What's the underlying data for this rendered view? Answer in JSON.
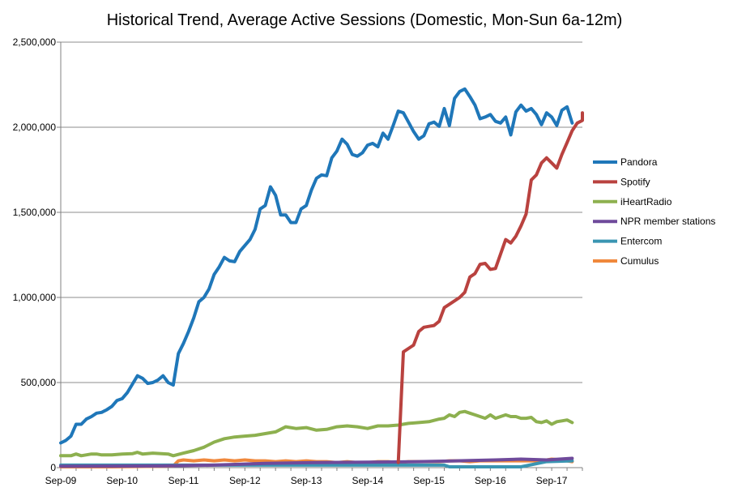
{
  "chart_data": {
    "type": "line",
    "title": "Historical Trend, Average Active Sessions (Domestic, Mon-Sun 6a-12m)",
    "xlabel": "",
    "ylabel": "",
    "x_ticks": [
      "Sep-09",
      "Sep-10",
      "Sep-11",
      "Sep-12",
      "Sep-13",
      "Sep-14",
      "Sep-15",
      "Sep-16",
      "Sep-17"
    ],
    "y_ticks": [
      "0",
      "500,000",
      "1,000,000",
      "1,500,000",
      "2,000,000",
      "2,500,000"
    ],
    "ylim": [
      0,
      2500000
    ],
    "xlim": [
      0,
      102
    ],
    "grid": "horizontal",
    "legend_position": "right",
    "series": [
      {
        "name": "Pandora",
        "color": "#1f77b9",
        "points": [
          [
            0,
            145000
          ],
          [
            1,
            160000
          ],
          [
            2,
            185000
          ],
          [
            3,
            255000
          ],
          [
            4,
            255000
          ],
          [
            5,
            285000
          ],
          [
            6,
            300000
          ],
          [
            7,
            320000
          ],
          [
            8,
            325000
          ],
          [
            9,
            340000
          ],
          [
            10,
            360000
          ],
          [
            11,
            395000
          ],
          [
            12,
            405000
          ],
          [
            13,
            440000
          ],
          [
            14,
            490000
          ],
          [
            15,
            540000
          ],
          [
            16,
            525000
          ],
          [
            17,
            495000
          ],
          [
            18,
            500000
          ],
          [
            19,
            515000
          ],
          [
            20,
            540000
          ],
          [
            21,
            500000
          ],
          [
            22,
            485000
          ],
          [
            23,
            670000
          ],
          [
            24,
            730000
          ],
          [
            25,
            800000
          ],
          [
            26,
            880000
          ],
          [
            27,
            975000
          ],
          [
            28,
            1000000
          ],
          [
            29,
            1050000
          ],
          [
            30,
            1135000
          ],
          [
            31,
            1180000
          ],
          [
            32,
            1235000
          ],
          [
            33,
            1215000
          ],
          [
            34,
            1210000
          ],
          [
            35,
            1270000
          ],
          [
            36,
            1305000
          ],
          [
            37,
            1340000
          ],
          [
            38,
            1400000
          ],
          [
            39,
            1520000
          ],
          [
            40,
            1540000
          ],
          [
            41,
            1650000
          ],
          [
            42,
            1600000
          ],
          [
            43,
            1485000
          ],
          [
            44,
            1485000
          ],
          [
            45,
            1440000
          ],
          [
            46,
            1440000
          ],
          [
            47,
            1520000
          ],
          [
            48,
            1540000
          ],
          [
            49,
            1630000
          ],
          [
            50,
            1700000
          ],
          [
            51,
            1720000
          ],
          [
            52,
            1715000
          ],
          [
            53,
            1820000
          ],
          [
            54,
            1860000
          ],
          [
            55,
            1930000
          ],
          [
            56,
            1900000
          ],
          [
            57,
            1840000
          ],
          [
            58,
            1830000
          ],
          [
            59,
            1850000
          ],
          [
            60,
            1895000
          ],
          [
            61,
            1905000
          ],
          [
            62,
            1885000
          ],
          [
            63,
            1965000
          ],
          [
            64,
            1930000
          ],
          [
            65,
            2010000
          ],
          [
            66,
            2095000
          ],
          [
            67,
            2085000
          ],
          [
            68,
            2030000
          ],
          [
            69,
            1975000
          ],
          [
            70,
            1930000
          ],
          [
            71,
            1950000
          ],
          [
            72,
            2020000
          ],
          [
            73,
            2030000
          ],
          [
            74,
            2005000
          ],
          [
            75,
            2110000
          ],
          [
            76,
            2010000
          ],
          [
            77,
            2170000
          ],
          [
            78,
            2210000
          ],
          [
            79,
            2225000
          ],
          [
            80,
            2180000
          ],
          [
            81,
            2130000
          ],
          [
            82,
            2050000
          ],
          [
            83,
            2060000
          ],
          [
            84,
            2075000
          ],
          [
            85,
            2035000
          ],
          [
            86,
            2025000
          ],
          [
            87,
            2060000
          ],
          [
            88,
            1955000
          ],
          [
            89,
            2090000
          ],
          [
            90,
            2130000
          ],
          [
            91,
            2095000
          ],
          [
            92,
            2110000
          ],
          [
            93,
            2075000
          ],
          [
            94,
            2015000
          ],
          [
            95,
            2085000
          ],
          [
            96,
            2060000
          ],
          [
            97,
            2010000
          ],
          [
            98,
            2100000
          ],
          [
            99,
            2120000
          ],
          [
            100,
            2025000
          ]
        ]
      },
      {
        "name": "Spotify",
        "color": "#b9423f",
        "points": [
          [
            66,
            30000
          ],
          [
            67,
            680000
          ],
          [
            68,
            700000
          ],
          [
            69,
            720000
          ],
          [
            70,
            800000
          ],
          [
            71,
            825000
          ],
          [
            72,
            830000
          ],
          [
            73,
            835000
          ],
          [
            74,
            860000
          ],
          [
            75,
            940000
          ],
          [
            76,
            960000
          ],
          [
            77,
            980000
          ],
          [
            78,
            1000000
          ],
          [
            79,
            1030000
          ],
          [
            80,
            1120000
          ],
          [
            81,
            1140000
          ],
          [
            82,
            1195000
          ],
          [
            83,
            1200000
          ],
          [
            84,
            1165000
          ],
          [
            85,
            1170000
          ],
          [
            86,
            1255000
          ],
          [
            87,
            1340000
          ],
          [
            88,
            1320000
          ],
          [
            89,
            1360000
          ],
          [
            90,
            1420000
          ],
          [
            91,
            1490000
          ],
          [
            92,
            1690000
          ],
          [
            93,
            1720000
          ],
          [
            94,
            1790000
          ],
          [
            95,
            1820000
          ],
          [
            96,
            1790000
          ],
          [
            97,
            1760000
          ],
          [
            98,
            1840000
          ],
          [
            99,
            1910000
          ],
          [
            100,
            1980000
          ],
          [
            101,
            2025000
          ],
          [
            102,
            2040000
          ],
          [
            103,
            2085000
          ]
        ]
      },
      {
        "name": "iHeartRadio",
        "color": "#8db04f",
        "points": [
          [
            0,
            70000
          ],
          [
            2,
            70000
          ],
          [
            3,
            80000
          ],
          [
            4,
            70000
          ],
          [
            6,
            80000
          ],
          [
            7,
            80000
          ],
          [
            8,
            75000
          ],
          [
            10,
            75000
          ],
          [
            12,
            80000
          ],
          [
            14,
            82000
          ],
          [
            15,
            90000
          ],
          [
            16,
            80000
          ],
          [
            18,
            85000
          ],
          [
            21,
            80000
          ],
          [
            22,
            70000
          ],
          [
            24,
            85000
          ],
          [
            26,
            100000
          ],
          [
            28,
            120000
          ],
          [
            30,
            150000
          ],
          [
            32,
            170000
          ],
          [
            34,
            180000
          ],
          [
            36,
            185000
          ],
          [
            38,
            190000
          ],
          [
            40,
            200000
          ],
          [
            42,
            210000
          ],
          [
            44,
            240000
          ],
          [
            46,
            230000
          ],
          [
            48,
            235000
          ],
          [
            50,
            220000
          ],
          [
            52,
            225000
          ],
          [
            54,
            240000
          ],
          [
            56,
            245000
          ],
          [
            58,
            240000
          ],
          [
            60,
            230000
          ],
          [
            62,
            245000
          ],
          [
            64,
            245000
          ],
          [
            66,
            250000
          ],
          [
            68,
            260000
          ],
          [
            70,
            265000
          ],
          [
            72,
            270000
          ],
          [
            74,
            285000
          ],
          [
            75,
            290000
          ],
          [
            76,
            310000
          ],
          [
            77,
            300000
          ],
          [
            78,
            325000
          ],
          [
            79,
            330000
          ],
          [
            80,
            320000
          ],
          [
            81,
            310000
          ],
          [
            82,
            300000
          ],
          [
            83,
            290000
          ],
          [
            84,
            310000
          ],
          [
            85,
            290000
          ],
          [
            86,
            300000
          ],
          [
            87,
            310000
          ],
          [
            88,
            300000
          ],
          [
            89,
            300000
          ],
          [
            90,
            290000
          ],
          [
            91,
            290000
          ],
          [
            92,
            295000
          ],
          [
            93,
            270000
          ],
          [
            94,
            265000
          ],
          [
            95,
            275000
          ],
          [
            96,
            255000
          ],
          [
            97,
            270000
          ],
          [
            98,
            275000
          ],
          [
            99,
            280000
          ],
          [
            100,
            265000
          ]
        ]
      },
      {
        "name": "NPR member stations",
        "color": "#6f4a9b",
        "points": [
          [
            0,
            8000
          ],
          [
            10,
            9000
          ],
          [
            20,
            10000
          ],
          [
            30,
            15000
          ],
          [
            40,
            25000
          ],
          [
            50,
            30000
          ],
          [
            60,
            32000
          ],
          [
            70,
            35000
          ],
          [
            75,
            38000
          ],
          [
            80,
            42000
          ],
          [
            85,
            45000
          ],
          [
            90,
            50000
          ],
          [
            95,
            45000
          ],
          [
            100,
            55000
          ]
        ]
      },
      {
        "name": "Entercom",
        "color": "#3a95b2",
        "points": [
          [
            0,
            15000
          ],
          [
            10,
            15000
          ],
          [
            20,
            15000
          ],
          [
            30,
            15000
          ],
          [
            40,
            15000
          ],
          [
            50,
            15000
          ],
          [
            60,
            15000
          ],
          [
            66,
            15000
          ],
          [
            70,
            15000
          ],
          [
            75,
            15000
          ],
          [
            76,
            5000
          ],
          [
            80,
            5000
          ],
          [
            85,
            5000
          ],
          [
            90,
            5000
          ],
          [
            95,
            35000
          ],
          [
            100,
            40000
          ]
        ]
      },
      {
        "name": "Cumulus",
        "color": "#f0883c",
        "points": [
          [
            0,
            5000
          ],
          [
            10,
            5000
          ],
          [
            20,
            8000
          ],
          [
            22,
            10000
          ],
          [
            23,
            40000
          ],
          [
            24,
            45000
          ],
          [
            26,
            40000
          ],
          [
            28,
            45000
          ],
          [
            30,
            40000
          ],
          [
            32,
            45000
          ],
          [
            34,
            40000
          ],
          [
            36,
            45000
          ],
          [
            38,
            40000
          ],
          [
            40,
            40000
          ],
          [
            42,
            35000
          ],
          [
            44,
            40000
          ],
          [
            46,
            35000
          ],
          [
            48,
            40000
          ],
          [
            50,
            35000
          ],
          [
            52,
            35000
          ],
          [
            54,
            30000
          ],
          [
            56,
            35000
          ],
          [
            58,
            30000
          ],
          [
            60,
            30000
          ],
          [
            62,
            35000
          ],
          [
            64,
            35000
          ],
          [
            66,
            30000
          ],
          [
            68,
            35000
          ],
          [
            70,
            35000
          ],
          [
            72,
            35000
          ],
          [
            74,
            35000
          ],
          [
            76,
            40000
          ],
          [
            78,
            40000
          ],
          [
            80,
            35000
          ],
          [
            82,
            40000
          ],
          [
            84,
            40000
          ],
          [
            86,
            40000
          ],
          [
            88,
            40000
          ],
          [
            90,
            40000
          ],
          [
            92,
            40000
          ],
          [
            94,
            40000
          ],
          [
            96,
            50000
          ],
          [
            98,
            45000
          ],
          [
            100,
            35000
          ]
        ]
      }
    ]
  }
}
